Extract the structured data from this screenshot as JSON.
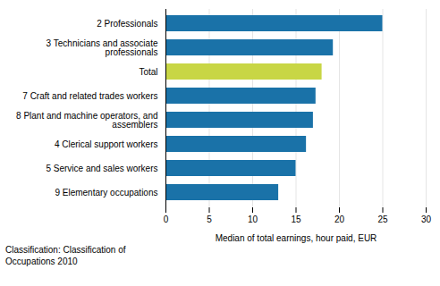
{
  "chart_data": {
    "type": "bar",
    "orientation": "horizontal",
    "categories": [
      "9 Elementary occupations",
      "5 Service and sales workers",
      "4 Clerical support workers",
      "8 Plant and machine operators, and\nassemblers",
      "7 Craft and related trades workers",
      "Total",
      "3 Technicians and associate\nprofessionals",
      "2 Professionals"
    ],
    "values": [
      13.0,
      15.0,
      16.2,
      17.0,
      17.3,
      18.0,
      19.3,
      25.0
    ],
    "colors": [
      "#1a72a8",
      "#1a72a8",
      "#1a72a8",
      "#1a72a8",
      "#1a72a8",
      "#c8d645",
      "#1a72a8",
      "#1a72a8"
    ],
    "xlabel": "Median of total earnings, hour paid, EUR",
    "annotations": [
      "Classification: Classification of\nOccupations 2010"
    ],
    "xlim": [
      0,
      30
    ],
    "xticks": [
      0,
      5,
      10,
      15,
      20,
      25,
      30
    ],
    "grid": true
  }
}
